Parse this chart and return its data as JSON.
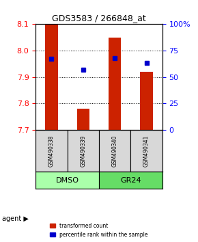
{
  "title": "GDS3583 / 266848_at",
  "samples": [
    "GSM490338",
    "GSM490339",
    "GSM490340",
    "GSM490341"
  ],
  "groups": [
    "DMSO",
    "DMSO",
    "GR24",
    "GR24"
  ],
  "group_labels": [
    "DMSO",
    "GR24"
  ],
  "group_colors": [
    "#90ee90",
    "#90ee90"
  ],
  "bar_values": [
    8.1,
    7.78,
    8.05,
    7.92
  ],
  "percentile_values": [
    67,
    57,
    68,
    63
  ],
  "bar_color": "#cc2200",
  "percentile_color": "#0000cc",
  "ymin": 7.7,
  "ymax": 8.1,
  "yticks": [
    7.7,
    7.8,
    7.9,
    8.0,
    8.1
  ],
  "y2min": 0,
  "y2max": 100,
  "y2ticks": [
    0,
    25,
    50,
    75,
    100
  ],
  "y2ticklabels": [
    "0",
    "25",
    "50",
    "75",
    "100%"
  ],
  "grid_color": "#000000",
  "background_color": "#ffffff",
  "agent_group_colors": [
    "#b3ffb3",
    "#66ff66"
  ],
  "dmso_color": "#aaffaa",
  "gr24_color": "#66ee66"
}
